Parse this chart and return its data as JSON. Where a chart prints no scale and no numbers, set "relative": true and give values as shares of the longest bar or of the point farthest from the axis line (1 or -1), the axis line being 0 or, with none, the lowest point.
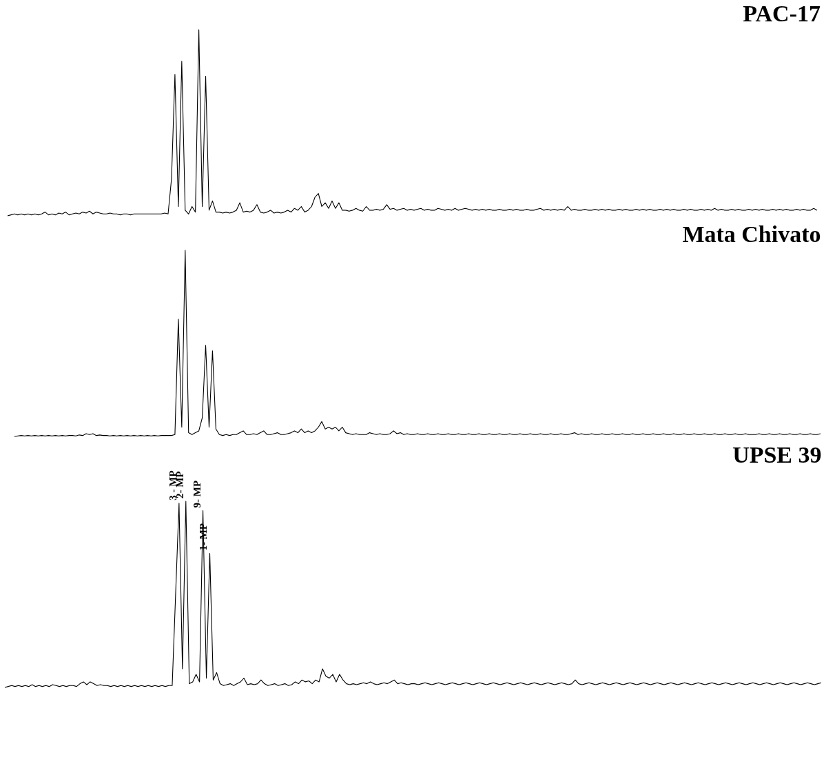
{
  "chart_data": [
    {
      "type": "line",
      "title": "PAC-17",
      "relative": true,
      "tick_labels": false,
      "color": "#000000",
      "categories": [
        null,
        null,
        null,
        null,
        null,
        null,
        null,
        null,
        null,
        null,
        null,
        null,
        null,
        null,
        null,
        null,
        null,
        null,
        null,
        null,
        null,
        null,
        null,
        null,
        null,
        null,
        null,
        null,
        null,
        null,
        null,
        null,
        null,
        null,
        null,
        null,
        null,
        null,
        null,
        null,
        null,
        null,
        null,
        null,
        null,
        null,
        null,
        null,
        null,
        null,
        null,
        null,
        null,
        null,
        null,
        null,
        null,
        null,
        null,
        null,
        null,
        null,
        null,
        null,
        null,
        null,
        null,
        null,
        null,
        null,
        null,
        null,
        null,
        null,
        null,
        null,
        null,
        null,
        null,
        null,
        null,
        null,
        null,
        null,
        null,
        null,
        null,
        null,
        null,
        null,
        null,
        null,
        null,
        null,
        null,
        null,
        null,
        null,
        null,
        null,
        null,
        null,
        null,
        null,
        null,
        null,
        null,
        null,
        null,
        null,
        null,
        null,
        null,
        null,
        null,
        null,
        null,
        null,
        null,
        null,
        null,
        null,
        null,
        null,
        null,
        null,
        null,
        null,
        null,
        null,
        null,
        null,
        null,
        null,
        null,
        null,
        null,
        null,
        null,
        null,
        null,
        null,
        null,
        null,
        null,
        null,
        null,
        null,
        null,
        null,
        null,
        null,
        null,
        null,
        null,
        null,
        null,
        null,
        null,
        null,
        null,
        null,
        null,
        null,
        null,
        null,
        null,
        null,
        null,
        null,
        null,
        null,
        null,
        null,
        null,
        null,
        null,
        null,
        null,
        null,
        null,
        null,
        null,
        null,
        null,
        null,
        null,
        null,
        null,
        null,
        null,
        null,
        null,
        null,
        null,
        null,
        null,
        null,
        null,
        null,
        null,
        null,
        null,
        null,
        null,
        null,
        null,
        null,
        null,
        null,
        null,
        null,
        null,
        null,
        null,
        null,
        null,
        null,
        null,
        null,
        null,
        null,
        null,
        null,
        null,
        null,
        null,
        null,
        null,
        null,
        null,
        null,
        null,
        null,
        null,
        null,
        null,
        null,
        null,
        null
      ],
      "values": [
        null,
        0,
        0.005,
        0.01,
        0.005,
        0.01,
        0.005,
        0.01,
        0.005,
        0.01,
        0.005,
        0.01,
        0.02,
        0.005,
        0.01,
        0.005,
        0.015,
        0.01,
        0.02,
        0.005,
        0.01,
        0.015,
        0.01,
        0.02,
        0.015,
        0.025,
        0.01,
        0.02,
        0.015,
        0.01,
        0.01,
        0.015,
        0.01,
        0.01,
        0.005,
        0.01,
        0.01,
        0.005,
        0.01,
        0.01,
        0.01,
        0.01,
        0.01,
        0.01,
        0.01,
        0.01,
        0.01,
        0.015,
        0.01,
        0.2,
        0.76,
        0.05,
        0.83,
        0.03,
        0.01,
        0.05,
        0.02,
        1.0,
        0.05,
        0.75,
        0.03,
        0.08,
        0.02,
        0.02,
        0.015,
        0.02,
        0.015,
        0.02,
        0.03,
        0.07,
        0.02,
        0.025,
        0.02,
        0.03,
        0.06,
        0.02,
        0.015,
        0.02,
        0.03,
        0.015,
        0.02,
        0.015,
        0.02,
        0.03,
        0.02,
        0.04,
        0.03,
        0.05,
        0.02,
        0.03,
        0.05,
        0.1,
        0.12,
        0.05,
        0.07,
        0.04,
        0.08,
        0.04,
        0.07,
        0.03,
        0.03,
        0.025,
        0.03,
        0.04,
        0.03,
        0.025,
        0.05,
        0.03,
        0.03,
        0.035,
        0.03,
        0.035,
        0.06,
        0.035,
        0.04,
        0.03,
        0.035,
        0.04,
        0.03,
        0.035,
        0.03,
        0.035,
        0.04,
        0.03,
        0.035,
        0.03,
        0.03,
        0.04,
        0.035,
        0.03,
        0.035,
        0.03,
        0.04,
        0.03,
        0.035,
        0.04,
        0.035,
        0.03,
        0.035,
        0.03,
        0.035,
        0.03,
        0.035,
        0.03,
        0.03,
        0.035,
        0.03,
        0.03,
        0.035,
        0.03,
        0.035,
        0.03,
        0.03,
        0.035,
        0.03,
        0.03,
        0.035,
        0.04,
        0.03,
        0.035,
        0.03,
        0.035,
        0.03,
        0.035,
        0.03,
        0.05,
        0.03,
        0.035,
        0.03,
        0.03,
        0.035,
        0.03,
        0.03,
        0.035,
        0.03,
        0.035,
        0.03,
        0.035,
        0.03,
        0.03,
        0.035,
        0.03,
        0.035,
        0.03,
        0.03,
        0.035,
        0.03,
        0.035,
        0.03,
        0.035,
        0.03,
        0.03,
        0.035,
        0.03,
        0.035,
        0.03,
        0.035,
        0.03,
        0.03,
        0.035,
        0.03,
        0.035,
        0.03,
        0.03,
        0.035,
        0.03,
        0.035,
        0.03,
        0.04,
        0.03,
        0.035,
        0.03,
        0.03,
        0.035,
        0.03,
        0.035,
        0.03,
        0.03,
        0.035,
        0.03,
        0.035,
        0.03,
        0.035,
        0.03,
        0.03,
        0.035,
        0.03,
        0.035,
        0.03,
        0.035,
        0.03,
        0.03,
        0.035,
        0.03,
        0.035,
        0.03,
        0.03,
        0.04,
        0.03,
        null
      ]
    },
    {
      "type": "line",
      "title": "Mata Chivato",
      "relative": true,
      "tick_labels": false,
      "color": "#000000",
      "categories": [
        null,
        null,
        null,
        null,
        null,
        null,
        null,
        null,
        null,
        null,
        null,
        null,
        null,
        null,
        null,
        null,
        null,
        null,
        null,
        null,
        null,
        null,
        null,
        null,
        null,
        null,
        null,
        null,
        null,
        null,
        null,
        null,
        null,
        null,
        null,
        null,
        null,
        null,
        null,
        null,
        null,
        null,
        null,
        null,
        null,
        null,
        null,
        null,
        null,
        null,
        null,
        null,
        null,
        null,
        null,
        null,
        null,
        null,
        null,
        null,
        null,
        null,
        null,
        null,
        null,
        null,
        null,
        null,
        null,
        null,
        null,
        null,
        null,
        null,
        null,
        null,
        null,
        null,
        null,
        null,
        null,
        null,
        null,
        null,
        null,
        null,
        null,
        null,
        null,
        null,
        null,
        null,
        null,
        null,
        null,
        null,
        null,
        null,
        null,
        null,
        null,
        null,
        null,
        null,
        null,
        null,
        null,
        null,
        null,
        null,
        null,
        null,
        null,
        null,
        null,
        null,
        null,
        null,
        null,
        null,
        null,
        null,
        null,
        null,
        null,
        null,
        null,
        null,
        null,
        null,
        null,
        null,
        null,
        null,
        null,
        null,
        null,
        null,
        null,
        null,
        null,
        null,
        null,
        null,
        null,
        null,
        null,
        null,
        null,
        null,
        null,
        null,
        null,
        null,
        null,
        null,
        null,
        null,
        null,
        null,
        null,
        null,
        null,
        null,
        null,
        null,
        null,
        null,
        null,
        null,
        null,
        null,
        null,
        null,
        null,
        null,
        null,
        null,
        null,
        null,
        null,
        null,
        null,
        null,
        null,
        null,
        null,
        null,
        null,
        null,
        null,
        null,
        null,
        null,
        null,
        null,
        null,
        null,
        null,
        null,
        null,
        null,
        null,
        null,
        null,
        null,
        null,
        null,
        null,
        null,
        null,
        null,
        null,
        null,
        null,
        null,
        null,
        null,
        null,
        null,
        null,
        null,
        null,
        null,
        null,
        null,
        null,
        null,
        null,
        null,
        null,
        null,
        null,
        null,
        null,
        null,
        null,
        null,
        null,
        null
      ],
      "values": [
        null,
        null,
        null,
        0,
        0.003,
        0.005,
        0.003,
        0.005,
        0.003,
        0.005,
        0.003,
        0.005,
        0.003,
        0.005,
        0.003,
        0.005,
        0.003,
        0.005,
        0.003,
        0.005,
        0.005,
        0.003,
        0.008,
        0.005,
        0.015,
        0.01,
        0.015,
        0.005,
        0.008,
        0.005,
        0.005,
        0.003,
        0.005,
        0.003,
        0.005,
        0.003,
        0.005,
        0.003,
        0.005,
        0.003,
        0.005,
        0.003,
        0.005,
        0.003,
        0.005,
        0.003,
        0.005,
        0.005,
        0.005,
        0.005,
        0.01,
        0.63,
        0.05,
        1.0,
        0.02,
        0.01,
        0.02,
        0.03,
        0.1,
        0.49,
        0.05,
        0.46,
        0.04,
        0.01,
        0.005,
        0.01,
        0.005,
        0.01,
        0.01,
        0.02,
        0.03,
        0.01,
        0.01,
        0.015,
        0.01,
        0.02,
        0.03,
        0.01,
        0.01,
        0.015,
        0.02,
        0.01,
        0.01,
        0.015,
        0.02,
        0.03,
        0.02,
        0.04,
        0.02,
        0.03,
        0.02,
        0.03,
        0.05,
        0.08,
        0.04,
        0.05,
        0.04,
        0.05,
        0.03,
        0.05,
        0.02,
        0.015,
        0.01,
        0.015,
        0.01,
        0.01,
        0.01,
        0.02,
        0.015,
        0.01,
        0.015,
        0.01,
        0.01,
        0.015,
        0.03,
        0.015,
        0.02,
        0.01,
        0.015,
        0.01,
        0.01,
        0.015,
        0.01,
        0.01,
        0.015,
        0.01,
        0.01,
        0.015,
        0.01,
        0.01,
        0.015,
        0.01,
        0.01,
        0.015,
        0.01,
        0.01,
        0.015,
        0.01,
        0.01,
        0.015,
        0.01,
        0.01,
        0.015,
        0.01,
        0.01,
        0.015,
        0.01,
        0.01,
        0.015,
        0.01,
        0.01,
        0.015,
        0.01,
        0.01,
        0.015,
        0.01,
        0.01,
        0.015,
        0.01,
        0.01,
        0.015,
        0.01,
        0.01,
        0.015,
        0.01,
        0.01,
        0.015,
        0.02,
        0.01,
        0.015,
        0.01,
        0.01,
        0.015,
        0.01,
        0.01,
        0.015,
        0.01,
        0.01,
        0.015,
        0.01,
        0.01,
        0.015,
        0.01,
        0.01,
        0.015,
        0.01,
        0.01,
        0.015,
        0.01,
        0.01,
        0.015,
        0.01,
        0.01,
        0.015,
        0.01,
        0.01,
        0.015,
        0.01,
        0.01,
        0.015,
        0.01,
        0.01,
        0.015,
        0.01,
        0.01,
        0.015,
        0.01,
        0.01,
        0.015,
        0.01,
        0.01,
        0.015,
        0.01,
        0.01,
        0.015,
        0.01,
        0.01,
        0.015,
        0.01,
        0.01,
        0.01,
        0.015,
        0.01,
        0.01,
        0.015,
        0.01,
        0.01,
        0.015,
        0.01,
        0.01,
        0.015,
        0.01,
        0.01,
        0.015,
        0.01,
        0.01,
        0.015,
        0.01,
        0.01,
        0.015
      ]
    },
    {
      "type": "line",
      "title": "UPSE 39",
      "relative": true,
      "tick_labels": false,
      "color": "#000000",
      "annotations": [
        "3 - MP",
        "2- MP",
        "9- MP",
        "1- MP"
      ],
      "categories": [
        null,
        null,
        null,
        null,
        null,
        null,
        null,
        null,
        null,
        null,
        null,
        null,
        null,
        null,
        null,
        null,
        null,
        null,
        null,
        null,
        null,
        null,
        null,
        null,
        null,
        null,
        null,
        null,
        null,
        null,
        null,
        null,
        null,
        null,
        null,
        null,
        null,
        null,
        null,
        null,
        null,
        null,
        null,
        null,
        null,
        null,
        null,
        null,
        null,
        null,
        null,
        null,
        null,
        null,
        null,
        null,
        null,
        null,
        null,
        null,
        null,
        null,
        null,
        null,
        null,
        null,
        null,
        null,
        null,
        null,
        null,
        null,
        null,
        null,
        null,
        null,
        null,
        null,
        null,
        null,
        null,
        null,
        null,
        null,
        null,
        null,
        null,
        null,
        null,
        null,
        null,
        null,
        null,
        null,
        null,
        null,
        null,
        null,
        null,
        null,
        null,
        null,
        null,
        null,
        null,
        null,
        null,
        null,
        null,
        null,
        null,
        null,
        null,
        null,
        null,
        null,
        null,
        null,
        null,
        null,
        null,
        null,
        null,
        null,
        null,
        null,
        null,
        null,
        null,
        null,
        null,
        null,
        null,
        null,
        null,
        null,
        null,
        null,
        null,
        null,
        null,
        null,
        null,
        null,
        null,
        null,
        null,
        null,
        null,
        null,
        null,
        null,
        null,
        null,
        null,
        null,
        null,
        null,
        null,
        null,
        null,
        null,
        null,
        null,
        null,
        null,
        null,
        null,
        null,
        null,
        null,
        null,
        null,
        null,
        null,
        null,
        null,
        null,
        null,
        null,
        null,
        null,
        null,
        null,
        null,
        null,
        null,
        null,
        null,
        null,
        null,
        null,
        null,
        null,
        null,
        null,
        null,
        null,
        null,
        null,
        null,
        null,
        null,
        null,
        null,
        null,
        null,
        null,
        null,
        null,
        null,
        null,
        null,
        null,
        null,
        null,
        null,
        null,
        null,
        null,
        null,
        null,
        null,
        null,
        null,
        null,
        null,
        null,
        null,
        null,
        null,
        null,
        null,
        null,
        null,
        null,
        null,
        null,
        null,
        null
      ],
      "values": [
        0,
        0.005,
        0.01,
        0.005,
        0.01,
        0.005,
        0.01,
        0.005,
        0.015,
        0.005,
        0.01,
        0.005,
        0.01,
        0.005,
        0.015,
        0.01,
        0.005,
        0.01,
        0.005,
        0.01,
        0.01,
        0.005,
        0.02,
        0.03,
        0.015,
        0.03,
        0.02,
        0.01,
        0.015,
        0.01,
        0.01,
        0.005,
        0.01,
        0.005,
        0.01,
        0.005,
        0.01,
        0.005,
        0.01,
        0.005,
        0.01,
        0.005,
        0.01,
        0.005,
        0.01,
        0.005,
        0.01,
        0.005,
        0.01,
        0.01,
        0.5,
        0.99,
        0.1,
        1.0,
        0.02,
        0.03,
        0.07,
        0.03,
        0.95,
        0.05,
        0.72,
        0.04,
        0.08,
        0.02,
        0.01,
        0.015,
        0.02,
        0.01,
        0.02,
        0.03,
        0.05,
        0.015,
        0.02,
        0.015,
        0.02,
        0.04,
        0.02,
        0.01,
        0.015,
        0.02,
        0.01,
        0.015,
        0.02,
        0.01,
        0.015,
        0.03,
        0.02,
        0.04,
        0.03,
        0.035,
        0.02,
        0.04,
        0.03,
        0.1,
        0.06,
        0.05,
        0.07,
        0.03,
        0.07,
        0.04,
        0.02,
        0.015,
        0.02,
        0.015,
        0.02,
        0.025,
        0.02,
        0.03,
        0.02,
        0.015,
        0.02,
        0.025,
        0.02,
        0.03,
        0.04,
        0.02,
        0.025,
        0.02,
        0.015,
        0.02,
        0.02,
        0.015,
        0.02,
        0.025,
        0.02,
        0.015,
        0.02,
        0.025,
        0.02,
        0.015,
        0.02,
        0.025,
        0.02,
        0.015,
        0.02,
        0.025,
        0.02,
        0.015,
        0.02,
        0.025,
        0.02,
        0.015,
        0.02,
        0.025,
        0.02,
        0.015,
        0.02,
        0.025,
        0.02,
        0.015,
        0.02,
        0.025,
        0.02,
        0.015,
        0.02,
        0.025,
        0.02,
        0.015,
        0.02,
        0.025,
        0.02,
        0.015,
        0.02,
        0.025,
        0.02,
        0.015,
        0.02,
        0.04,
        0.02,
        0.015,
        0.02,
        0.025,
        0.02,
        0.015,
        0.02,
        0.025,
        0.02,
        0.015,
        0.02,
        0.025,
        0.02,
        0.015,
        0.02,
        0.025,
        0.02,
        0.015,
        0.02,
        0.025,
        0.02,
        0.015,
        0.02,
        0.025,
        0.02,
        0.015,
        0.02,
        0.025,
        0.02,
        0.015,
        0.02,
        0.025,
        0.02,
        0.015,
        0.02,
        0.025,
        0.02,
        0.015,
        0.02,
        0.025,
        0.02,
        0.015,
        0.02,
        0.025,
        0.02,
        0.015,
        0.02,
        0.025,
        0.02,
        0.015,
        0.02,
        0.025,
        0.02,
        0.015,
        0.02,
        0.025,
        0.02,
        0.015,
        0.02,
        0.025,
        0.02,
        0.015,
        0.02,
        0.025,
        0.02,
        0.015,
        0.02,
        0.025,
        0.02,
        0.015,
        0.02,
        0.025
      ]
    }
  ]
}
